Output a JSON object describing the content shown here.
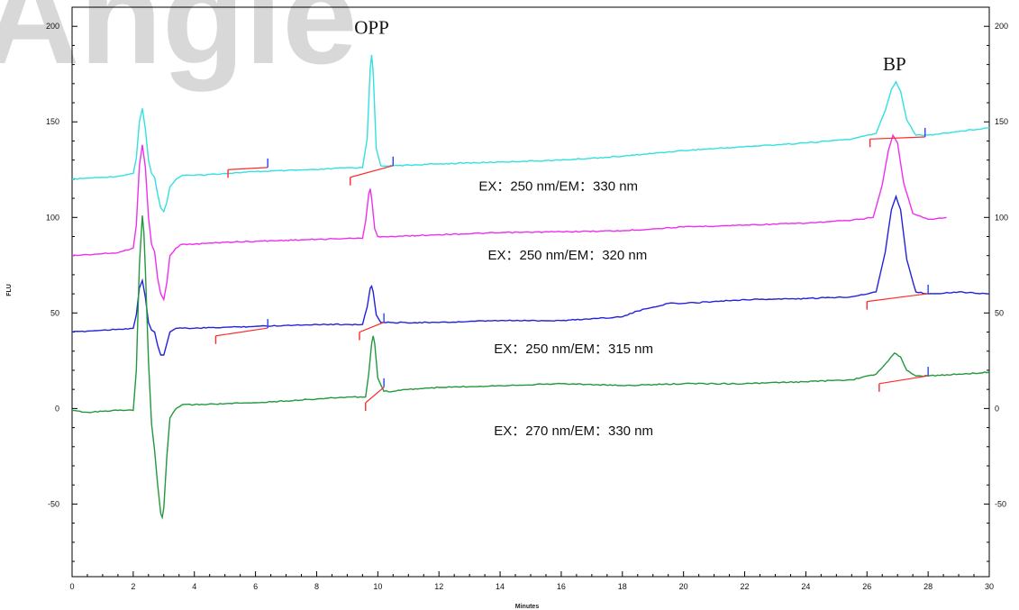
{
  "watermark": "Angle",
  "chart_data": {
    "type": "line",
    "xlabel": "Minutes",
    "ylabel": "FLU",
    "xlim": [
      0,
      30
    ],
    "ylim": [
      -88,
      210
    ],
    "x_ticks": [
      0,
      2,
      4,
      6,
      8,
      10,
      12,
      14,
      16,
      18,
      20,
      22,
      24,
      26,
      28,
      30
    ],
    "y_ticks": [
      -50,
      0,
      50,
      100,
      150,
      200
    ],
    "peak_labels": [
      {
        "text": "OPP",
        "x": 9.8,
        "y": 196
      },
      {
        "text": "BP",
        "x": 26.9,
        "y": 177
      }
    ],
    "series": [
      {
        "label": "EX：250 nm/EM：330 nm",
        "color": "#33e0e0",
        "label_pos": {
          "x": 13.3,
          "y": 114
        },
        "x": [
          0,
          0.5,
          1,
          1.5,
          2,
          2.1,
          2.2,
          2.3,
          2.4,
          2.5,
          2.6,
          2.7,
          2.8,
          2.9,
          3.0,
          3.1,
          3.2,
          3.4,
          3.6,
          4,
          5,
          6,
          7,
          8,
          9,
          9.5,
          9.65,
          9.75,
          9.8,
          9.85,
          9.95,
          10.1,
          10.5,
          12,
          14,
          16,
          18,
          20,
          22,
          24,
          25.5,
          26.3,
          26.6,
          26.8,
          26.95,
          27.1,
          27.3,
          27.6,
          28,
          29,
          30
        ],
        "y": [
          120,
          120.5,
          121,
          121.5,
          123,
          131,
          150,
          157,
          146,
          130,
          123,
          121,
          112,
          105,
          103,
          108,
          116,
          120,
          122,
          122,
          123,
          124,
          124.5,
          125,
          126,
          126,
          141,
          178,
          185,
          176,
          136,
          127,
          127,
          128,
          129,
          130,
          132,
          135,
          137,
          139,
          141,
          144,
          156,
          167,
          171,
          166,
          151,
          143,
          143,
          145,
          147
        ],
        "markers": [
          {
            "type": "start",
            "x": 5.1,
            "y": 125
          },
          {
            "type": "end",
            "x": 6.4,
            "y": 128
          },
          {
            "type": "start",
            "x": 9.1,
            "y": 121
          },
          {
            "type": "end",
            "x": 10.5,
            "y": 129
          },
          {
            "type": "start",
            "x": 26.1,
            "y": 141
          },
          {
            "type": "end",
            "x": 27.9,
            "y": 144
          }
        ]
      },
      {
        "label": "EX：250 nm/EM：320 nm",
        "color": "#ee30ee",
        "label_pos": {
          "x": 13.6,
          "y": 78
        },
        "x": [
          0,
          0.5,
          1,
          1.5,
          2,
          2.1,
          2.2,
          2.3,
          2.4,
          2.5,
          2.6,
          2.7,
          2.8,
          2.9,
          3.0,
          3.1,
          3.2,
          3.4,
          3.6,
          4,
          5,
          6,
          7,
          8,
          9,
          9.5,
          9.6,
          9.7,
          9.75,
          9.8,
          9.9,
          10,
          10.5,
          12,
          14,
          16,
          18,
          20,
          22,
          24,
          25.5,
          26.2,
          26.5,
          26.7,
          26.85,
          27.0,
          27.2,
          27.5,
          28,
          28.6
        ],
        "y": [
          80,
          80.5,
          81,
          81.5,
          84,
          96,
          127,
          138,
          126,
          100,
          86,
          82,
          68,
          60,
          57,
          66,
          80,
          84,
          86,
          86,
          87,
          87.5,
          88,
          88.5,
          89,
          89,
          98,
          112,
          115,
          110,
          94,
          90,
          90,
          91,
          92,
          92.5,
          93,
          95,
          96,
          97,
          98.5,
          100,
          117,
          135,
          143,
          139,
          118,
          102,
          99,
          100
        ]
      },
      {
        "label": "EX：250 nm/EM：315 nm",
        "color": "#2222dd",
        "label_pos": {
          "x": 13.8,
          "y": 29
        },
        "x": [
          0,
          0.5,
          1,
          1.5,
          2,
          2.1,
          2.2,
          2.3,
          2.4,
          2.5,
          2.6,
          2.7,
          2.8,
          2.9,
          3.0,
          3.1,
          3.2,
          3.4,
          3.6,
          4,
          5,
          6,
          7,
          8,
          9,
          9.5,
          9.65,
          9.75,
          9.8,
          9.85,
          9.95,
          10.1,
          10.5,
          12,
          14,
          16,
          17,
          18,
          18.5,
          19,
          19.5,
          20,
          21,
          22,
          24,
          25.5,
          26.3,
          26.6,
          26.8,
          26.95,
          27.1,
          27.3,
          27.6,
          28,
          29,
          30
        ],
        "y": [
          40,
          40.5,
          41,
          41.5,
          42,
          49,
          63,
          67,
          58,
          45,
          41,
          40,
          33,
          28,
          28,
          34,
          40,
          42,
          42,
          42,
          42.5,
          43,
          43.5,
          44,
          44,
          44,
          53,
          63,
          64,
          61,
          49,
          45,
          45,
          45,
          46,
          46,
          47,
          48,
          51,
          53,
          55,
          55,
          56,
          57,
          57.5,
          58.5,
          61,
          82,
          104,
          111,
          104,
          78,
          61,
          60,
          61,
          60
        ],
        "markers": [
          {
            "type": "start",
            "x": 4.7,
            "y": 38
          },
          {
            "type": "end",
            "x": 6.4,
            "y": 44
          },
          {
            "type": "start",
            "x": 9.4,
            "y": 40
          },
          {
            "type": "end",
            "x": 10.2,
            "y": 47
          },
          {
            "type": "start",
            "x": 26.0,
            "y": 56
          },
          {
            "type": "end",
            "x": 28.0,
            "y": 62
          }
        ]
      },
      {
        "label": "EX：270 nm/EM：330 nm",
        "color": "#22993a",
        "label_pos": {
          "x": 13.8,
          "y": -14
        },
        "x": [
          0,
          0.5,
          1,
          1.5,
          2.0,
          2.1,
          2.2,
          2.3,
          2.35,
          2.4,
          2.5,
          2.6,
          2.7,
          2.8,
          2.9,
          2.95,
          3.0,
          3.1,
          3.2,
          3.4,
          3.6,
          4,
          5,
          6,
          7,
          8,
          9,
          9.6,
          9.7,
          9.8,
          9.85,
          9.9,
          10.0,
          10.2,
          10.5,
          11,
          12,
          14,
          16,
          18,
          20,
          22,
          24,
          25.5,
          26.3,
          26.7,
          26.9,
          27.1,
          27.3,
          27.6,
          28,
          29,
          30
        ],
        "y": [
          -1,
          -2,
          -1.5,
          -1,
          -1,
          20,
          75,
          101,
          92,
          72,
          25,
          -8,
          -22,
          -40,
          -55,
          -57,
          -52,
          -25,
          -5,
          0,
          2,
          2,
          2.5,
          3,
          4,
          5,
          6,
          6,
          18,
          34,
          38,
          34,
          16,
          9,
          9,
          10,
          11,
          12,
          13,
          12,
          13,
          13,
          14,
          15,
          18,
          25,
          29,
          27,
          20,
          17,
          17,
          18,
          19
        ],
        "markers": [
          {
            "type": "start",
            "x": 9.6,
            "y": 3
          },
          {
            "type": "end",
            "x": 10.2,
            "y": 13
          },
          {
            "type": "start",
            "x": 26.4,
            "y": 13
          },
          {
            "type": "end",
            "x": 28.0,
            "y": 19
          }
        ]
      }
    ]
  }
}
